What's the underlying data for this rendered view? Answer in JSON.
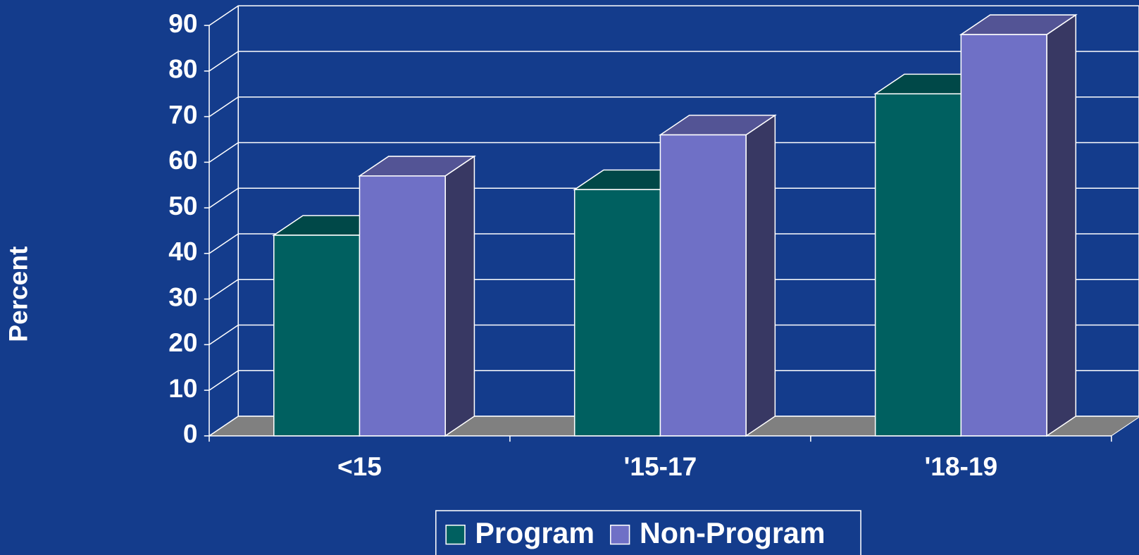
{
  "chart_data": {
    "type": "bar3d",
    "y_label": "Percent",
    "categories": [
      "<15",
      "'15-17",
      "'18-19"
    ],
    "series": [
      {
        "name": "Program",
        "color": "#006060",
        "values": [
          44,
          54,
          75
        ]
      },
      {
        "name": "Non-Program",
        "color": "#6f70c6",
        "values": [
          57,
          66,
          88
        ]
      }
    ],
    "ylim": [
      0,
      90
    ],
    "yticks": [
      0,
      10,
      20,
      30,
      40,
      50,
      60,
      70,
      80,
      90
    ],
    "grid": true,
    "legend": "bottom"
  }
}
